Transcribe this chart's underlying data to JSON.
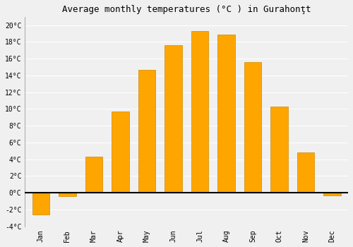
{
  "title": "Average monthly temperatures (°C ) in Gurahonţt",
  "months": [
    "Jan",
    "Feb",
    "Mar",
    "Apr",
    "May",
    "Jun",
    "Jul",
    "Aug",
    "Sep",
    "Oct",
    "Nov",
    "Dec"
  ],
  "values": [
    -2.6,
    -0.4,
    4.3,
    9.7,
    14.7,
    17.6,
    19.3,
    18.9,
    15.6,
    10.3,
    4.8,
    -0.3
  ],
  "bar_color": "#FFA500",
  "bar_edge_color": "#CC8800",
  "ylim": [
    -4,
    21
  ],
  "yticks": [
    -4,
    -2,
    0,
    2,
    4,
    6,
    8,
    10,
    12,
    14,
    16,
    18,
    20
  ],
  "background_color": "#f0f0f0",
  "plot_bg_color": "#f5f5f5",
  "grid_color": "#e0e0e0",
  "zero_line_color": "#000000",
  "title_fontsize": 9,
  "tick_fontsize": 7,
  "font_family": "monospace"
}
